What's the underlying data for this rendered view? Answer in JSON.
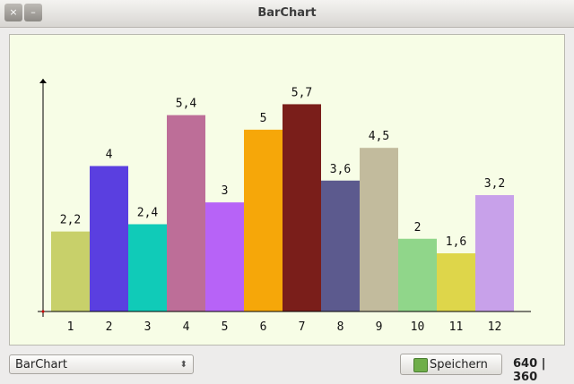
{
  "window": {
    "title": "BarChart"
  },
  "chart_data": {
    "type": "bar",
    "categories": [
      "1",
      "2",
      "3",
      "4",
      "5",
      "6",
      "7",
      "8",
      "9",
      "10",
      "11",
      "12"
    ],
    "values": [
      2.2,
      4,
      2.4,
      5.4,
      3,
      5,
      5.7,
      3.6,
      4.5,
      2,
      1.6,
      3.2
    ],
    "value_labels": [
      "2,2",
      "4",
      "2,4",
      "5,4",
      "3",
      "5",
      "5,7",
      "3,6",
      "4,5",
      "2",
      "1,6",
      "3,2"
    ],
    "colors": [
      "#c8d06a",
      "#5a3fe0",
      "#10cbb8",
      "#bd6e98",
      "#b763f7",
      "#f6a709",
      "#7a1e1a",
      "#5c5a8e",
      "#c2bb9d",
      "#90d68a",
      "#ded64a",
      "#c8a1ea"
    ],
    "ylim": [
      0,
      6.4
    ]
  },
  "controls": {
    "dropdown": "BarChart",
    "button": "Speichern",
    "size": "640 | 360"
  }
}
